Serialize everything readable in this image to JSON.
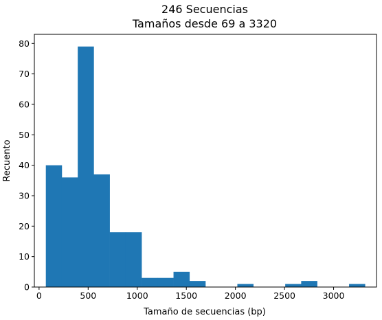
{
  "chart_data": {
    "type": "bar",
    "title_lines": [
      "246 Secuencias",
      "Tamaños desde 69 a 3320"
    ],
    "xlabel": "Tamaño de secuencias (bp)",
    "ylabel": "Recuento",
    "xlim": [
      -48,
      3437
    ],
    "ylim": [
      0,
      83
    ],
    "x_ticks": [
      0,
      500,
      1000,
      1500,
      2000,
      2500,
      3000
    ],
    "y_ticks": [
      0,
      10,
      20,
      30,
      40,
      50,
      60,
      70,
      80
    ],
    "bin_edges": [
      69,
      231.55,
      394.1,
      556.65,
      719.2,
      881.75,
      1044.3,
      1206.85,
      1369.4,
      1531.95,
      1694.5,
      1857.05,
      2019.6,
      2182.15,
      2344.7,
      2507.25,
      2669.8,
      2832.35,
      2994.9,
      3157.45,
      3320
    ],
    "counts": [
      40,
      36,
      79,
      37,
      18,
      18,
      3,
      3,
      5,
      2,
      0,
      0,
      1,
      0,
      0,
      1,
      2,
      0,
      0,
      1
    ],
    "bar_color": "#1f77b4",
    "grid": false
  }
}
